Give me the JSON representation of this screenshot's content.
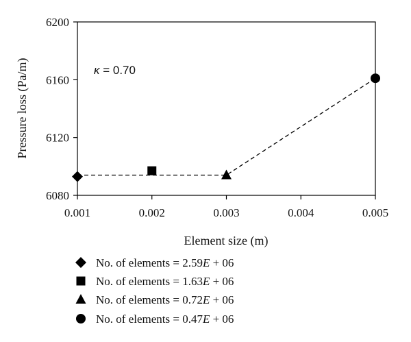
{
  "chart_data": {
    "type": "scatter",
    "xlabel": "Element size (m)",
    "ylabel": "Pressure loss (Pa/m)",
    "xlim": [
      0.001,
      0.005
    ],
    "ylim": [
      6080,
      6200
    ],
    "x_ticks": [
      0.001,
      0.002,
      0.003,
      0.004,
      0.005
    ],
    "x_tick_labels": [
      "0.001",
      "0.002",
      "0.003",
      "0.004",
      "0.005"
    ],
    "y_ticks": [
      6080,
      6120,
      6160,
      6200
    ],
    "y_tick_labels": [
      "6080",
      "6120",
      "6160",
      "6200"
    ],
    "grid": false,
    "annotation": {
      "kappa_symbol": "κ",
      "kappa_rest": " = 0.70"
    },
    "connector_line": {
      "style": "dashed",
      "color": "#000000",
      "x": [
        0.001,
        0.003,
        0.005
      ],
      "y": [
        6094,
        6094,
        6161
      ]
    },
    "series": [
      {
        "name": "No. of elements = 2.59E + 06",
        "label_prefix": "No. of elements = 2.59",
        "label_E": "E",
        "label_suffix": " + 06",
        "marker": "diamond",
        "x": [
          0.001
        ],
        "y": [
          6093
        ]
      },
      {
        "name": "No. of elements = 1.63E + 06",
        "label_prefix": "No. of elements = 1.63",
        "label_E": "E",
        "label_suffix": " + 06",
        "marker": "square",
        "x": [
          0.002
        ],
        "y": [
          6097
        ]
      },
      {
        "name": "No. of elements = 0.72E + 06",
        "label_prefix": "No. of elements = 0.72",
        "label_E": "E",
        "label_suffix": " + 06",
        "marker": "triangle",
        "x": [
          0.003
        ],
        "y": [
          6094
        ]
      },
      {
        "name": "No. of elements = 0.47E + 06",
        "label_prefix": "No. of elements = 0.47",
        "label_E": "E",
        "label_suffix": " + 06",
        "marker": "circle",
        "x": [
          0.005
        ],
        "y": [
          6161
        ]
      }
    ],
    "legend_position": "bottom"
  }
}
